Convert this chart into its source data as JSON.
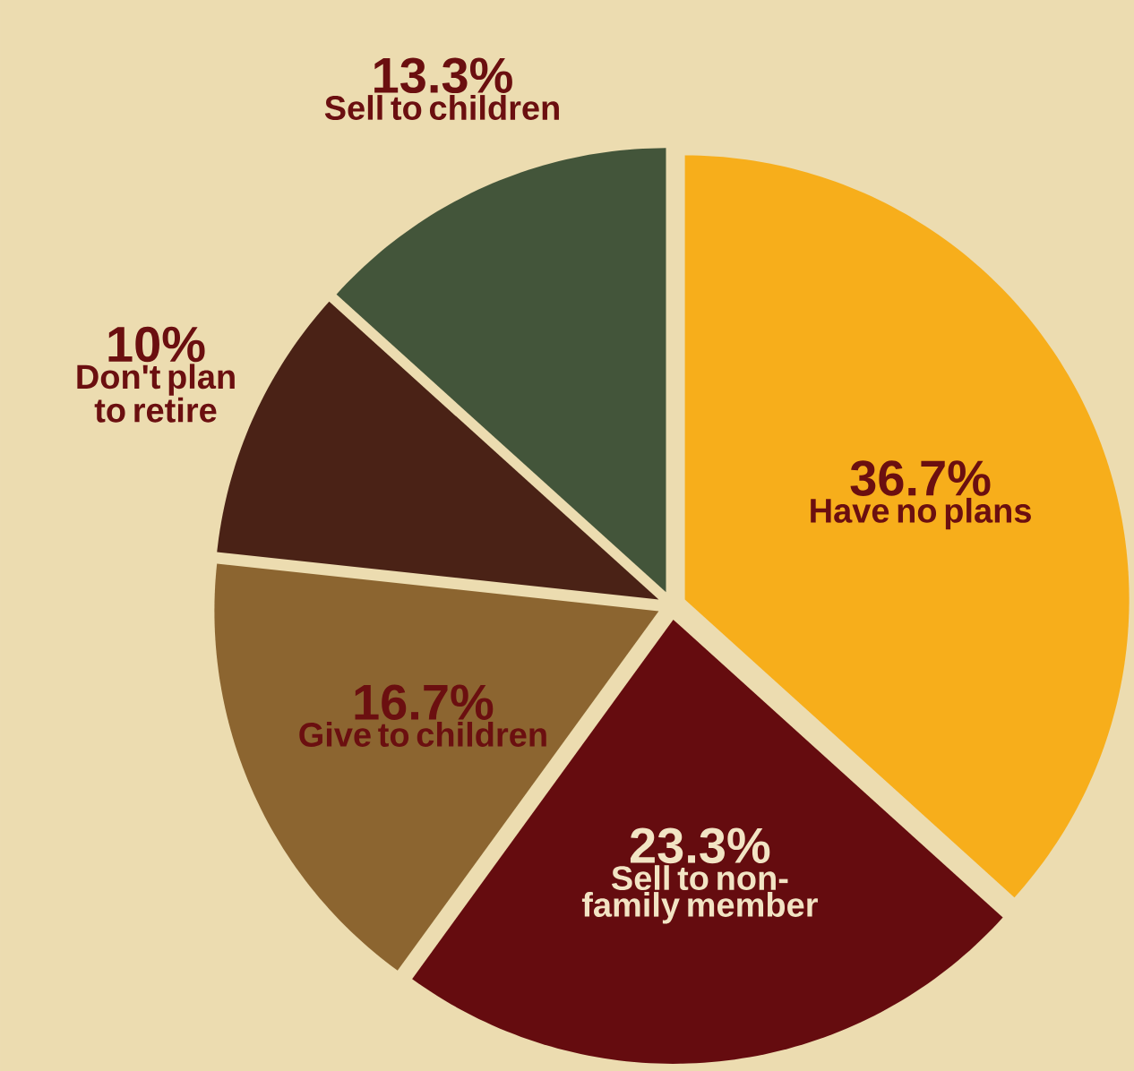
{
  "chart_data": {
    "type": "pie",
    "categories": [
      "Have no plans",
      "Sell to non-family member",
      "Give to children",
      "Don't plan to retire",
      "Sell to children"
    ],
    "values": [
      36.7,
      23.3,
      16.7,
      10,
      13.3
    ],
    "value_labels": [
      "36.7%",
      "23.3%",
      "16.7%",
      "10%",
      "13.3%"
    ],
    "colors": [
      "#f7ae1b",
      "#650c0f",
      "#8c6530",
      "#4a2216",
      "#43553a"
    ]
  }
}
